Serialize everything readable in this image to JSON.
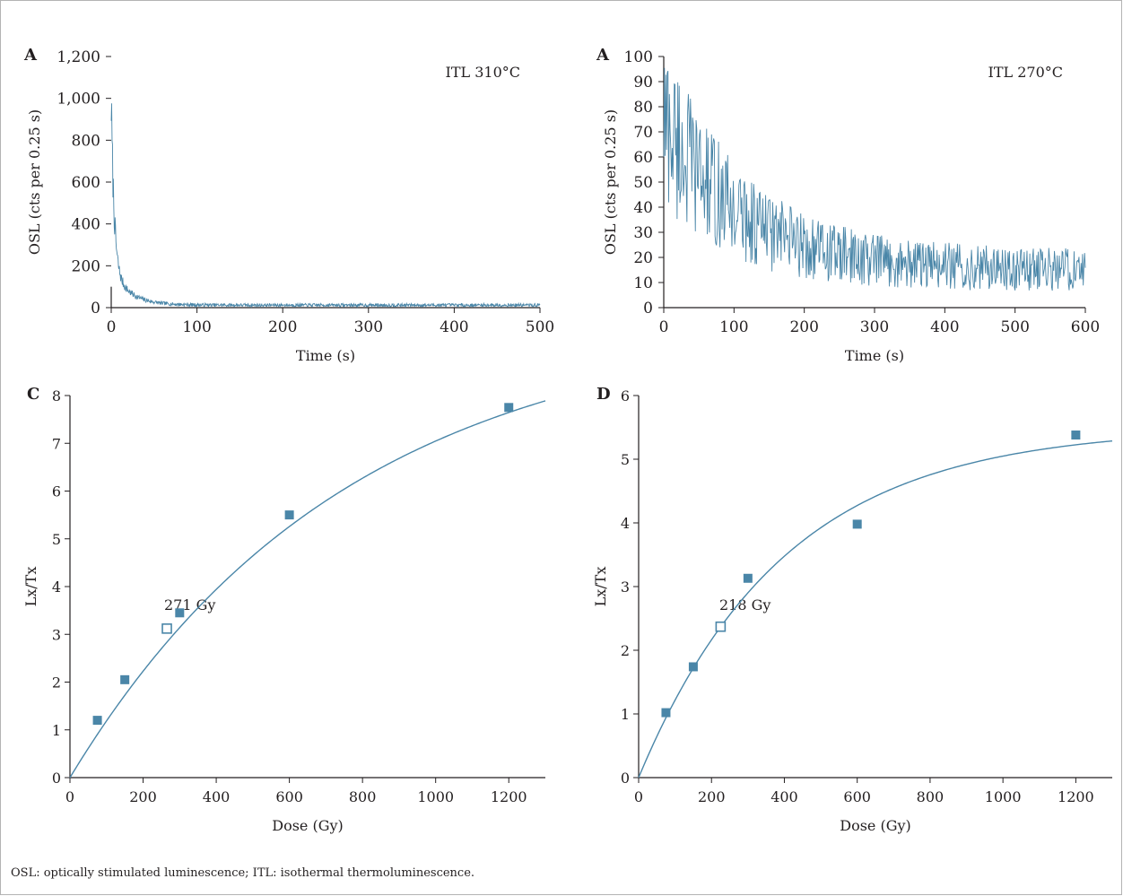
{
  "footnote": "OSL: optically stimulated luminescence; ITL: isothermal thermoluminescence.",
  "colors": {
    "series": "#4a86a8",
    "text": "#231f20",
    "axis": "#231f20",
    "frame": "#b3b3b3"
  },
  "chart_data": [
    {
      "panel_label": "A",
      "type": "line",
      "annotation": "ITL 310°C",
      "xlabel": "Time (s)",
      "ylabel": "OSL (cts per 0.25 s)",
      "xlim": [
        0,
        500
      ],
      "ylim": [
        0,
        1200
      ],
      "xticks": [
        0,
        100,
        200,
        300,
        400,
        500
      ],
      "xtick_labels": [
        "0",
        "100",
        "200",
        "300",
        "400",
        "500"
      ],
      "yticks": [
        0,
        200,
        400,
        600,
        800,
        1000,
        1200
      ],
      "ytick_labels": [
        "0",
        "200",
        "400",
        "600",
        "800",
        "1,000",
        "1,200"
      ],
      "series": [
        {
          "decay": {
            "t_max": 500,
            "step": 0.5,
            "baseline": 12,
            "components": [
              [
                780,
                3.5
              ],
              [
                180,
                20
              ]
            ],
            "noise": 0.15,
            "noise_abs": 6
          }
        }
      ]
    },
    {
      "panel_label": "A",
      "type": "line",
      "annotation": "ITL 270°C",
      "xlabel": "Time (s)",
      "ylabel": "OSL (cts per 0.25 s)",
      "xlim": [
        0,
        600
      ],
      "ylim": [
        0,
        100
      ],
      "xticks": [
        0,
        100,
        200,
        300,
        400,
        500,
        600
      ],
      "xtick_labels": [
        "0",
        "100",
        "200",
        "300",
        "400",
        "500",
        "600"
      ],
      "yticks": [
        0,
        10,
        20,
        30,
        40,
        50,
        60,
        70,
        80,
        90,
        100
      ],
      "ytick_labels": [
        "0",
        "10",
        "20",
        "30",
        "40",
        "50",
        "60",
        "70",
        "80",
        "90",
        "100"
      ],
      "series": [
        {
          "decay": {
            "t_max": 600,
            "step": 1,
            "baseline": 15,
            "components": [
              [
                60,
                110
              ]
            ],
            "noise": 0.45,
            "noise_abs": 2
          }
        }
      ]
    },
    {
      "panel_label": "C",
      "type": "scatter",
      "annotation": "271 Gy",
      "xlabel": "Dose (Gy)",
      "ylabel": "Lx/Tx",
      "xlim": [
        0,
        1300
      ],
      "ylim": [
        0,
        8
      ],
      "xticks": [
        0,
        200,
        400,
        600,
        800,
        1000,
        1200
      ],
      "xtick_labels": [
        "0",
        "200",
        "400",
        "600",
        "800",
        "1000",
        "1200"
      ],
      "yticks": [
        0,
        1,
        2,
        3,
        4,
        5,
        6,
        7,
        8
      ],
      "ytick_labels": [
        "0",
        "1",
        "2",
        "3",
        "4",
        "5",
        "6",
        "7",
        "8"
      ],
      "series": [
        {
          "type": "scatter",
          "marker": "filled-square",
          "points": [
            [
              75,
              1.2
            ],
            [
              150,
              2.05
            ],
            [
              300,
              3.45
            ],
            [
              600,
              5.5
            ],
            [
              1200,
              7.75
            ]
          ]
        },
        {
          "type": "scatter",
          "marker": "open-square",
          "points": [
            [
              265,
              3.12
            ]
          ]
        },
        {
          "type": "line",
          "fit": {
            "a": 9.63,
            "d0": 760
          }
        }
      ]
    },
    {
      "panel_label": "D",
      "type": "scatter",
      "annotation": "218 Gy",
      "xlabel": "Dose (Gy)",
      "ylabel": "Lx/Tx",
      "xlim": [
        0,
        1300
      ],
      "ylim": [
        0,
        6
      ],
      "xticks": [
        0,
        200,
        400,
        600,
        800,
        1000,
        1200
      ],
      "xtick_labels": [
        "0",
        "200",
        "400",
        "600",
        "800",
        "1000",
        "1200"
      ],
      "yticks": [
        0,
        1,
        2,
        3,
        4,
        5,
        6
      ],
      "ytick_labels": [
        "0",
        "1",
        "2",
        "3",
        "4",
        "5",
        "6"
      ],
      "series": [
        {
          "type": "scatter",
          "marker": "filled-square",
          "points": [
            [
              75,
              1.02
            ],
            [
              150,
              1.74
            ],
            [
              300,
              3.13
            ],
            [
              600,
              3.98
            ],
            [
              1200,
              5.38
            ]
          ]
        },
        {
          "type": "scatter",
          "marker": "open-square",
          "points": [
            [
              225,
              2.37
            ]
          ]
        },
        {
          "type": "line",
          "fit": {
            "a": 5.5,
            "d0": 400
          }
        }
      ]
    }
  ]
}
